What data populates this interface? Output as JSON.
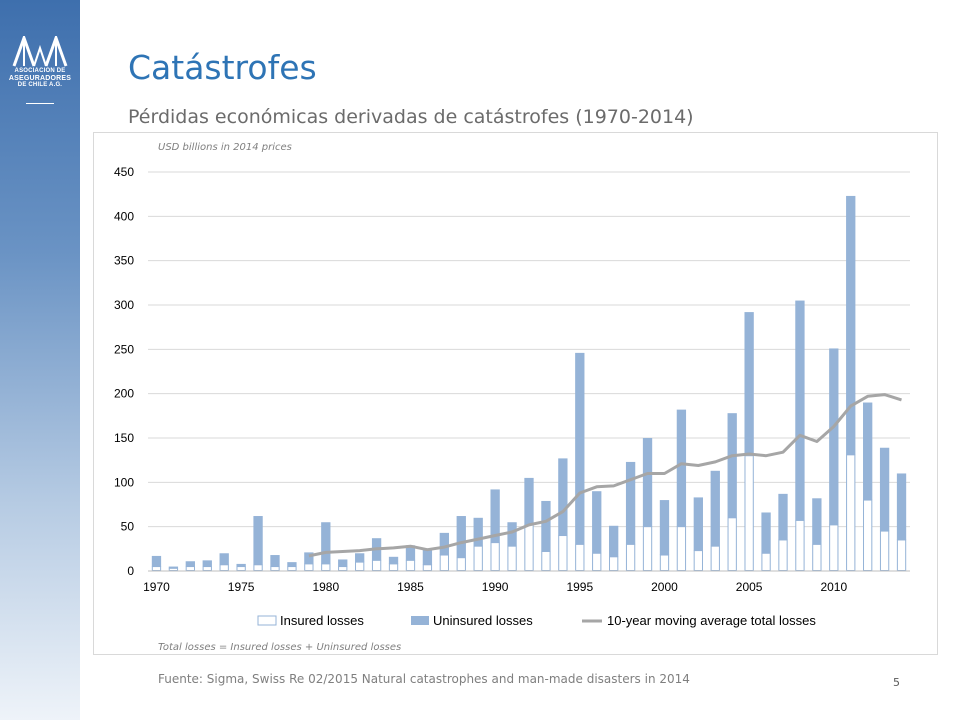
{
  "slide": {
    "title": "Catástrofes",
    "subtitle": "Pérdidas económicas derivadas de catástrofes (1970-2014)",
    "units_note": "USD billions in 2014 prices",
    "formula_note": "Total losses = Insured losses + Uninsured losses",
    "source": "Fuente: Sigma, Swiss Re 02/2015 Natural catastrophes and man-made disasters in 2014",
    "page_number": "5"
  },
  "logo": {
    "lines": [
      "ASOCIACION DE",
      "ASEGURADORES",
      "DE CHILE A.G."
    ]
  },
  "colors": {
    "title": "#2e74b5",
    "insured_fill": "#ffffff",
    "insured_stroke": "#95b3d7",
    "uninsured": "#95b3d7",
    "moving_avg": "#a6a6a6",
    "gridline": "#d9d9d9"
  },
  "chart_data": {
    "type": "bar",
    "stacked": true,
    "title": "",
    "xlabel": "",
    "ylabel": "",
    "ylim": [
      0,
      450
    ],
    "yticks": [
      0,
      50,
      100,
      150,
      200,
      250,
      300,
      350,
      400,
      450
    ],
    "xtick_labels": [
      "1970",
      "1975",
      "1980",
      "1985",
      "1990",
      "1995",
      "2000",
      "2005",
      "2010"
    ],
    "grid": "horizontal",
    "legend_position": "bottom",
    "years": [
      1970,
      1971,
      1972,
      1973,
      1974,
      1975,
      1976,
      1977,
      1978,
      1979,
      1980,
      1981,
      1982,
      1983,
      1984,
      1985,
      1986,
      1987,
      1988,
      1989,
      1990,
      1991,
      1992,
      1993,
      1994,
      1995,
      1996,
      1997,
      1998,
      1999,
      2000,
      2001,
      2002,
      2003,
      2004,
      2005,
      2006,
      2007,
      2008,
      2009,
      2010,
      2011,
      2012,
      2013,
      2014
    ],
    "series": [
      {
        "name": "Insured losses",
        "kind": "bar",
        "values": [
          5,
          3,
          5,
          5,
          7,
          5,
          7,
          5,
          5,
          8,
          8,
          5,
          10,
          12,
          8,
          12,
          7,
          18,
          15,
          28,
          32,
          28,
          52,
          22,
          40,
          30,
          20,
          16,
          30,
          50,
          18,
          50,
          23,
          28,
          60,
          130,
          20,
          35,
          57,
          30,
          52,
          131,
          80,
          45,
          35
        ]
      },
      {
        "name": "Uninsured losses",
        "kind": "bar",
        "values": [
          12,
          2,
          6,
          7,
          13,
          3,
          55,
          13,
          5,
          13,
          47,
          8,
          10,
          25,
          8,
          17,
          18,
          25,
          47,
          32,
          60,
          27,
          53,
          57,
          87,
          216,
          70,
          35,
          93,
          100,
          62,
          132,
          60,
          85,
          118,
          162,
          46,
          52,
          248,
          52,
          199,
          292,
          110,
          94,
          75
        ]
      },
      {
        "name": "10-year moving average total losses",
        "kind": "line",
        "start_year": 1979,
        "values": [
          17,
          21,
          22,
          23,
          25,
          26,
          28,
          24,
          27,
          32,
          36,
          40,
          44,
          52,
          56,
          67,
          88,
          95,
          96,
          103,
          110,
          110,
          121,
          119,
          123,
          130,
          132,
          130,
          134,
          153,
          146,
          163,
          186,
          197,
          199,
          193
        ]
      }
    ]
  }
}
